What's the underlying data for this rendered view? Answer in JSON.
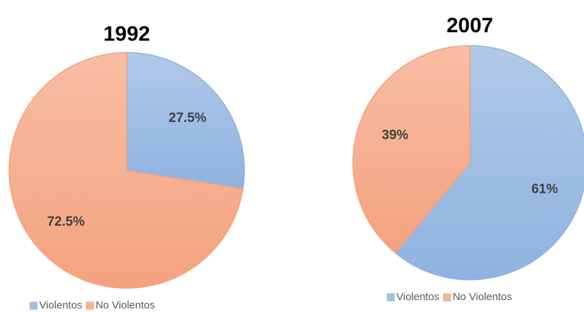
{
  "chart_data": [
    {
      "type": "pie",
      "title": "1992",
      "categories": [
        "Violentos",
        "No Violentos"
      ],
      "values": [
        27.5,
        72.5
      ],
      "value_labels": [
        "27.5%",
        "72.5%"
      ],
      "colors": [
        "#8fb2e0",
        "#f4a27e"
      ],
      "legend": "bottom"
    },
    {
      "type": "pie",
      "title": "2007",
      "categories": [
        "Violentos",
        "No Violentos"
      ],
      "values": [
        61,
        39
      ],
      "value_labels": [
        "61%",
        "39%"
      ],
      "colors": [
        "#8fb2e0",
        "#f4a27e"
      ],
      "legend": "bottom"
    }
  ]
}
